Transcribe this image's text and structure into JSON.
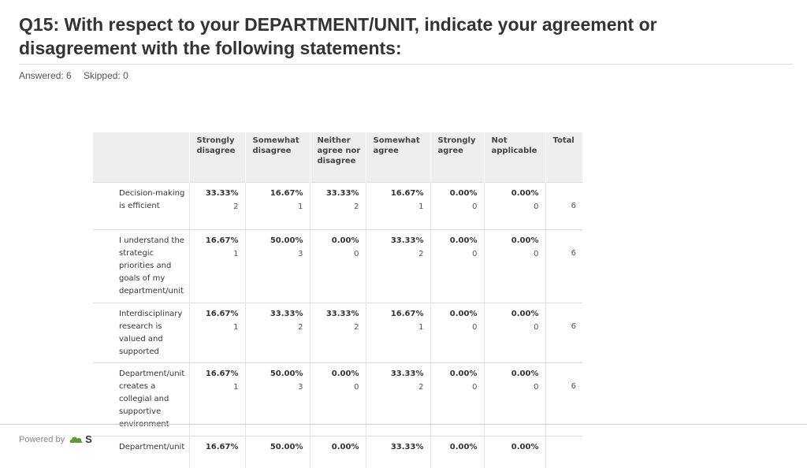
{
  "question": {
    "title": "Q15: With respect to your DEPARTMENT/UNIT, indicate your agreement or disagreement with the following statements:",
    "answered": "Answered: 6",
    "skipped": "Skipped: 0"
  },
  "table": {
    "headers": [
      "",
      "Strongly disagree",
      "Somewhat disagree",
      "Neither agree nor disagree",
      "Somewhat agree",
      "Strongly agree",
      "Not applicable",
      "Total"
    ],
    "rows": [
      {
        "label": "Decision-making is efficient",
        "cells": [
          [
            "33.33%",
            "2"
          ],
          [
            "16.67%",
            "1"
          ],
          [
            "33.33%",
            "2"
          ],
          [
            "16.67%",
            "1"
          ],
          [
            "0.00%",
            "0"
          ],
          [
            "0.00%",
            "0"
          ]
        ],
        "total": "6"
      },
      {
        "label": "I understand the strategic priorities and goals of my department/unit",
        "cells": [
          [
            "16.67%",
            "1"
          ],
          [
            "50.00%",
            "3"
          ],
          [
            "0.00%",
            "0"
          ],
          [
            "33.33%",
            "2"
          ],
          [
            "0.00%",
            "0"
          ],
          [
            "0.00%",
            "0"
          ]
        ],
        "total": "6"
      },
      {
        "label": "Interdisciplinary research is valued and supported",
        "cells": [
          [
            "16.67%",
            "1"
          ],
          [
            "33.33%",
            "2"
          ],
          [
            "33.33%",
            "2"
          ],
          [
            "16.67%",
            "1"
          ],
          [
            "0.00%",
            "0"
          ],
          [
            "0.00%",
            "0"
          ]
        ],
        "total": "6"
      },
      {
        "label": "Department/unit creates a collegial and supportive environment",
        "cells": [
          [
            "16.67%",
            "1"
          ],
          [
            "50.00%",
            "3"
          ],
          [
            "0.00%",
            "0"
          ],
          [
            "33.33%",
            "2"
          ],
          [
            "0.00%",
            "0"
          ],
          [
            "0.00%",
            "0"
          ]
        ],
        "total": "6"
      },
      {
        "label": "Department/unit",
        "cells": [
          [
            "16.67%",
            ""
          ],
          [
            "50.00%",
            ""
          ],
          [
            "0.00%",
            ""
          ],
          [
            "33.33%",
            ""
          ],
          [
            "0.00%",
            ""
          ],
          [
            "0.00%",
            ""
          ]
        ],
        "total": ""
      }
    ]
  },
  "footer": {
    "powered_by": "Powered by",
    "brand_fragment": "S",
    "logo_icon": "cloud-logo-icon"
  }
}
